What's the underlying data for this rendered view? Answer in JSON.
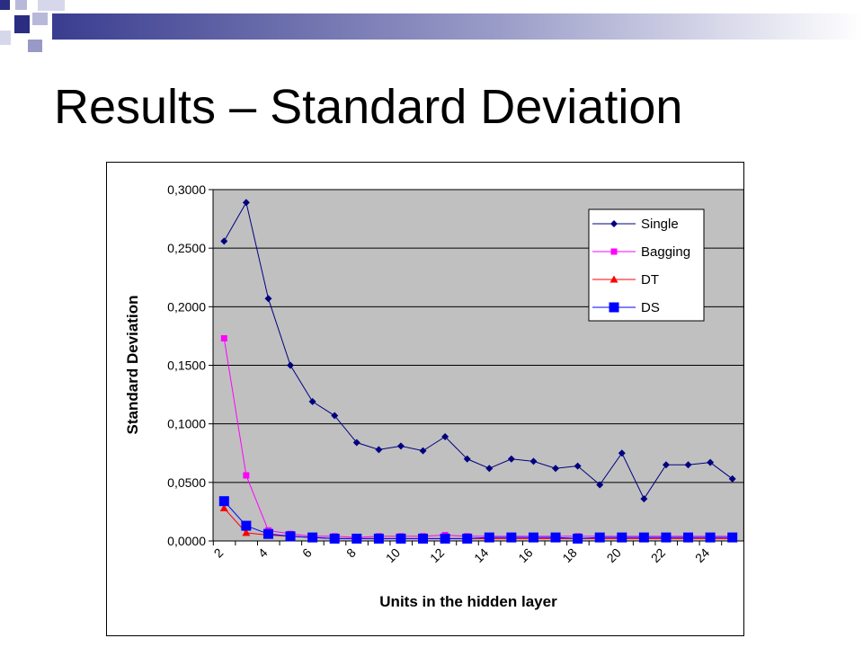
{
  "slide": {
    "title": "Results – Standard Deviation"
  },
  "chart_data": {
    "type": "line",
    "title": "",
    "xlabel": "Units in the hidden layer",
    "ylabel": "Standard Deviation",
    "ylim": [
      0,
      0.3
    ],
    "yticks": [
      "0,0000",
      "0,0500",
      "0,1000",
      "0,1500",
      "0,2000",
      "0,2500",
      "0,3000"
    ],
    "x": [
      2,
      3,
      4,
      5,
      6,
      7,
      8,
      9,
      10,
      11,
      12,
      13,
      14,
      15,
      16,
      17,
      18,
      19,
      20,
      21,
      22,
      23,
      24,
      25
    ],
    "xtick_labels": [
      "2",
      "4",
      "6",
      "8",
      "10",
      "12",
      "14",
      "16",
      "18",
      "20",
      "22",
      "24"
    ],
    "grid": true,
    "plot_background": "#c0c0c0",
    "legend_position": "top-right",
    "series": [
      {
        "name": "Single",
        "color": "#000080",
        "marker": "diamond",
        "values": [
          0.256,
          0.289,
          0.207,
          0.15,
          0.119,
          0.107,
          0.084,
          0.078,
          0.081,
          0.077,
          0.089,
          0.07,
          0.062,
          0.07,
          0.068,
          0.062,
          0.064,
          0.048,
          0.075,
          0.036,
          0.065,
          0.065,
          0.067,
          0.053
        ]
      },
      {
        "name": "Bagging",
        "color": "#ff00ff",
        "marker": "square",
        "values": [
          0.173,
          0.056,
          0.009,
          0.006,
          0.004,
          0.004,
          0.003,
          0.004,
          0.004,
          0.004,
          0.005,
          0.004,
          0.004,
          0.004,
          0.004,
          0.004,
          0.004,
          0.004,
          0.004,
          0.004,
          0.004,
          0.004,
          0.004,
          0.004
        ]
      },
      {
        "name": "DT",
        "color": "#ff0000",
        "marker": "triangle",
        "values": [
          0.028,
          0.007,
          0.005,
          0.004,
          0.003,
          0.002,
          0.002,
          0.002,
          0.002,
          0.002,
          0.002,
          0.002,
          0.002,
          0.002,
          0.002,
          0.002,
          0.002,
          0.002,
          0.002,
          0.002,
          0.002,
          0.002,
          0.002,
          0.002
        ]
      },
      {
        "name": "DS",
        "color": "#0000ff",
        "marker": "big-square",
        "values": [
          0.034,
          0.013,
          0.006,
          0.004,
          0.003,
          0.002,
          0.002,
          0.002,
          0.002,
          0.002,
          0.002,
          0.002,
          0.003,
          0.003,
          0.003,
          0.003,
          0.002,
          0.003,
          0.003,
          0.003,
          0.003,
          0.003,
          0.003,
          0.003
        ]
      }
    ]
  }
}
